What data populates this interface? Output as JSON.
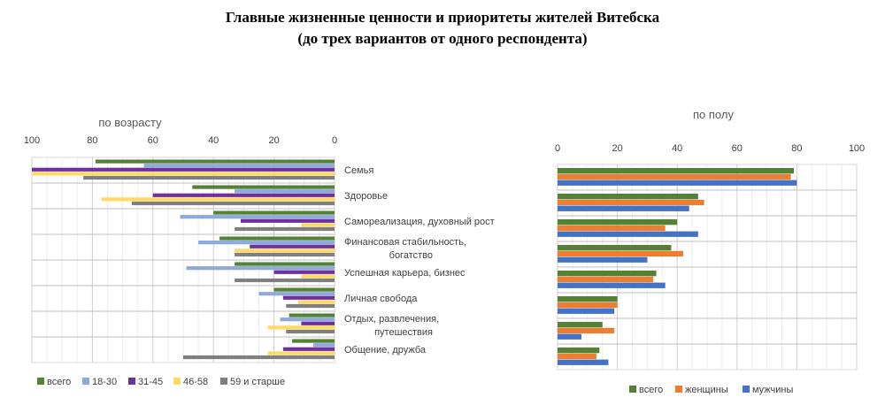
{
  "header": {
    "title_line1": "Главные жизненные ценности и приоритеты жителей Витебска",
    "title_line2": "(до трех вариантов от одного респондента)"
  },
  "categories": [
    "Семья",
    "Здоровье",
    "Самореализация, духовный рост",
    "Финансовая стабильность,\nбогатство",
    "Успешная карьера, бизнес",
    "Личная свобода",
    "Отдых, развлечения,\nпутешествия",
    "Общение, дружба"
  ],
  "chart_data": [
    {
      "type": "bar",
      "orientation": "horizontal",
      "title": "по возрасту",
      "xlim": [
        100,
        0
      ],
      "x_reversed": true,
      "ticks": [
        100,
        80,
        60,
        40,
        20,
        0
      ],
      "grid": true,
      "legend_position": "bottom",
      "series": [
        {
          "name": "всего",
          "color": "#548235",
          "values": [
            79,
            47,
            40,
            38,
            33,
            20,
            15,
            14
          ]
        },
        {
          "name": "18-30",
          "color": "#8EA9DB",
          "values": [
            63,
            33,
            51,
            45,
            49,
            25,
            18,
            7
          ]
        },
        {
          "name": "31-45",
          "color": "#7030A0",
          "values": [
            100,
            60,
            31,
            28,
            20,
            17,
            11,
            17
          ]
        },
        {
          "name": "46-58",
          "color": "#FFD966",
          "values": [
            100,
            77,
            11,
            33,
            11,
            12,
            22,
            22
          ]
        },
        {
          "name": "59 и старше",
          "color": "#7F7F7F",
          "values": [
            83,
            67,
            33,
            33,
            33,
            16,
            16,
            50
          ]
        }
      ]
    },
    {
      "type": "bar",
      "orientation": "horizontal",
      "title": "по полу",
      "xlim": [
        0,
        100
      ],
      "ticks": [
        0,
        20,
        40,
        60,
        80,
        100
      ],
      "grid": true,
      "legend_position": "bottom",
      "series": [
        {
          "name": "всего",
          "color": "#548235",
          "values": [
            79,
            47,
            40,
            38,
            33,
            20,
            15,
            14
          ]
        },
        {
          "name": "женщины",
          "color": "#ED7D31",
          "values": [
            78,
            49,
            36,
            42,
            32,
            20,
            19,
            13
          ]
        },
        {
          "name": "мужчины",
          "color": "#4472C4",
          "values": [
            80,
            44,
            47,
            30,
            36,
            19,
            8,
            17
          ]
        }
      ]
    }
  ]
}
